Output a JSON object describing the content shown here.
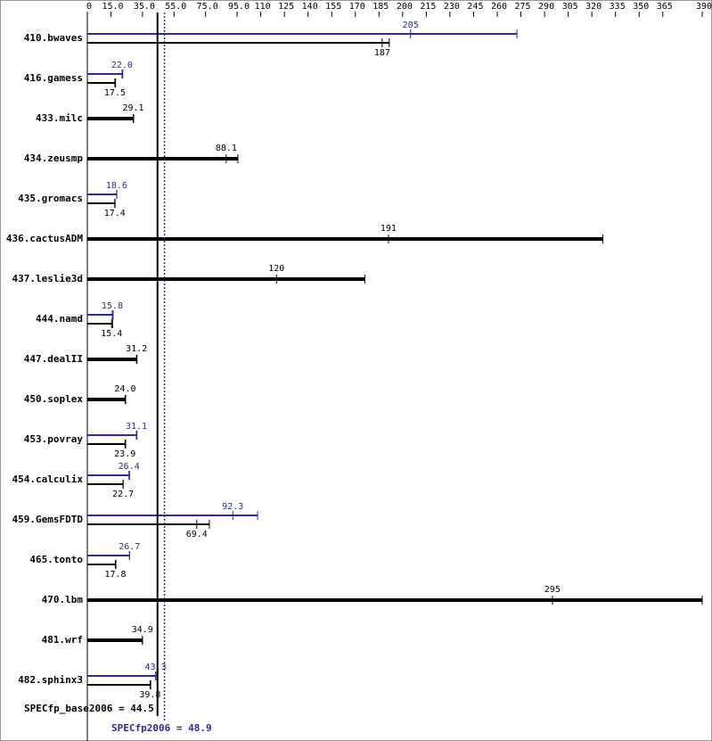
{
  "chart_data": {
    "type": "bar",
    "categories": [
      "410.bwaves",
      "416.gamess",
      "433.milc",
      "434.zeusmp",
      "435.gromacs",
      "436.cactusADM",
      "437.leslie3d",
      "444.namd",
      "447.dealII",
      "450.soplex",
      "453.povray",
      "454.calculix",
      "459.GemsFDTD",
      "465.tonto",
      "470.lbm",
      "481.wrf",
      "482.sphinx3"
    ],
    "xlim": [
      0,
      390
    ],
    "xticks": [
      0,
      {
        "value": 15,
        "label": "15.0"
      },
      {
        "value": 35,
        "label": "35.0"
      },
      {
        "value": 55,
        "label": "55.0"
      },
      {
        "value": 75,
        "label": "75.0"
      },
      {
        "value": 95,
        "label": "95.0"
      },
      110,
      125,
      140,
      155,
      170,
      185,
      200,
      215,
      230,
      245,
      260,
      275,
      290,
      305,
      320,
      335,
      350,
      365,
      390
    ],
    "series": [
      {
        "color": "#000000",
        "values": [
          187,
          17.5,
          29.1,
          88.1,
          17.4,
          191,
          120,
          15.4,
          31.2,
          24.0,
          23.9,
          22.7,
          69.4,
          17.8,
          295,
          34.9,
          39.8
        ],
        "value_labels": [
          "187",
          "17.5",
          "29.1",
          "88.1",
          "17.4",
          "191",
          "120",
          "15.4",
          "31.2",
          "24.0",
          "23.9",
          "22.7",
          "69.4",
          "17.8",
          "295",
          "34.9",
          "39.8"
        ],
        "bar_ends": [
          191.5,
          17.9,
          29.4,
          95.5,
          17.6,
          327,
          176,
          16,
          31.5,
          24.3,
          24.3,
          22.7,
          77.4,
          18.1,
          390,
          35,
          40.2
        ]
      },
      {
        "color": "#2b2b9c",
        "values": [
          205,
          22.0,
          null,
          null,
          18.6,
          null,
          null,
          15.8,
          null,
          null,
          31.1,
          26.4,
          92.3,
          26.7,
          null,
          null,
          43.3
        ],
        "value_labels": [
          "205",
          "22.0",
          null,
          null,
          "18.6",
          null,
          null,
          "15.8",
          null,
          null,
          "31.1",
          "26.4",
          "92.3",
          "26.7",
          null,
          null,
          "43.3"
        ],
        "bar_ends": [
          272.5,
          22.5,
          null,
          null,
          18.7,
          null,
          null,
          16.4,
          null,
          null,
          31.5,
          26.8,
          108,
          26.8,
          null,
          null,
          44
        ]
      }
    ],
    "reference_lines": [
      {
        "label": "SPECfp_base2006 = 44.5",
        "value": 44.5,
        "color": "#000000",
        "style": "solid"
      },
      {
        "label": "SPECfp2006 = 48.9",
        "value": 48.9,
        "color": "#2b2b9c",
        "style": "dotted"
      }
    ]
  }
}
